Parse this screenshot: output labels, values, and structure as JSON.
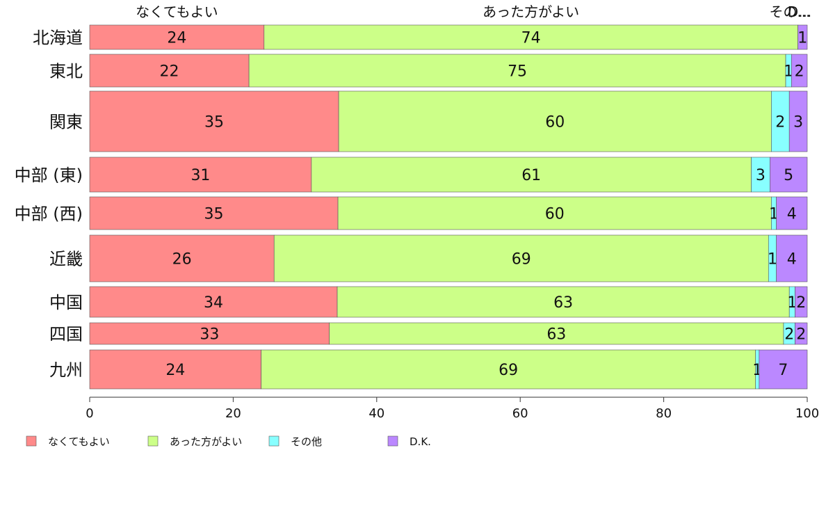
{
  "chart_data": {
    "type": "bar",
    "orientation": "horizontal",
    "stacked": true,
    "categories": [
      "北海道",
      "東北",
      "関東",
      "中部 (東)",
      "中部 (西)",
      "近畿",
      "中国",
      "四国",
      "九州"
    ],
    "series": [
      {
        "name": "なくてもよい",
        "color": "#ff8a8a",
        "values": [
          24.3,
          22.2,
          34.7,
          30.9,
          34.6,
          25.7,
          34.5,
          33.4,
          23.9
        ],
        "labels": [
          "24",
          "22",
          "35",
          "31",
          "35",
          "26",
          "34",
          "33",
          "24"
        ]
      },
      {
        "name": "あった方がよい",
        "color": "#ccff88",
        "values": [
          74.4,
          74.8,
          60.3,
          61.3,
          60.4,
          68.9,
          63.0,
          63.3,
          68.9
        ],
        "labels": [
          "74",
          "75",
          "60",
          "61",
          "60",
          "69",
          "63",
          "63",
          "69"
        ]
      },
      {
        "name": "その他",
        "color": "#88ffff",
        "values": [
          0.0,
          0.8,
          2.5,
          2.6,
          0.7,
          1.1,
          0.8,
          1.6,
          0.5
        ],
        "labels": [
          "",
          "1",
          "2",
          "3",
          "1",
          "1",
          "1",
          "2",
          "1"
        ]
      },
      {
        "name": "D.K.",
        "color": "#bb88ff",
        "values": [
          1.3,
          2.2,
          2.5,
          5.2,
          4.3,
          4.3,
          1.7,
          1.7,
          6.7
        ],
        "labels": [
          "1",
          "2",
          "3",
          "5",
          "4",
          "4",
          "2",
          "2",
          "7"
        ]
      }
    ],
    "top_labels": [
      "なくてもよい",
      "あった方がよい",
      "その...",
      "D..."
    ],
    "x_ticks": [
      "0",
      "20",
      "40",
      "60",
      "80",
      "100"
    ],
    "xlim": [
      0,
      100
    ],
    "legend": {
      "position": "bottom-left",
      "items": [
        "なくてもよい",
        "あった方がよい",
        "その他",
        "D.K."
      ]
    }
  }
}
